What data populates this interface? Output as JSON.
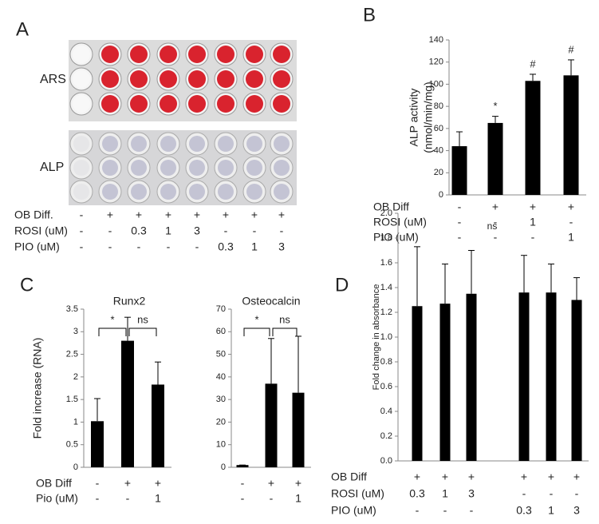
{
  "panel_labels": [
    "A",
    "B",
    "C",
    "D"
  ],
  "panel_a": {
    "row_labels": [
      "ARS",
      "ALP"
    ],
    "conditions": [
      {
        "name": "OB Diff.",
        "values": [
          "-",
          "+",
          "+",
          "+",
          "+",
          "+",
          "+",
          "+"
        ]
      },
      {
        "name": "ROSI (uM)",
        "values": [
          "-",
          "-",
          "0.3",
          "1",
          "3",
          "-",
          "-",
          "-"
        ]
      },
      {
        "name": "PIO (uM)",
        "values": [
          "-",
          "-",
          "-",
          "-",
          "-",
          "0.3",
          "1",
          "3"
        ]
      }
    ]
  },
  "chart_data": [
    {
      "type": "bar",
      "ylabel": [
        "ALP activity",
        "(nmol/min/mg)"
      ],
      "color": "#000000",
      "values": [
        44,
        65,
        103,
        108
      ],
      "errors": [
        13,
        6,
        6,
        14
      ],
      "bar_labels": [
        null,
        "*",
        "#",
        "#"
      ],
      "ylim": [
        0,
        140
      ],
      "yticks": [
        0,
        20,
        40,
        60,
        80,
        100,
        120,
        140
      ],
      "conditions": [
        {
          "name": "OB Diff",
          "values": [
            "-",
            "+",
            "+",
            "+"
          ]
        },
        {
          "name": "ROSI (uM)",
          "values": [
            "-",
            "-",
            "1",
            "-"
          ]
        },
        {
          "name": "PIO   (uM)",
          "values": [
            "-",
            "-",
            "-",
            "1"
          ]
        }
      ]
    },
    {
      "type": "bar",
      "title": "Runx2",
      "ylabel": [
        "Fold increase (RNA)"
      ],
      "color": "#000000",
      "values": [
        1.02,
        2.8,
        1.83
      ],
      "errors": [
        0.5,
        0.52,
        0.5
      ],
      "bracket_labels": [
        "*",
        "ns"
      ],
      "ylim": [
        0,
        3.5
      ],
      "yticks": [
        0,
        0.5,
        1,
        1.5,
        2,
        2.5,
        3,
        3.5
      ],
      "conditions": [
        {
          "name": "OB Diff",
          "values": [
            "-",
            "+",
            "+"
          ]
        },
        {
          "name": "Pio (uM)",
          "values": [
            "-",
            "-",
            "1"
          ]
        }
      ]
    },
    {
      "type": "bar",
      "title": "Osteocalcin",
      "color": "#000000",
      "values": [
        1,
        37,
        33
      ],
      "errors": [
        0,
        20,
        25
      ],
      "bracket_labels": [
        "*",
        "ns"
      ],
      "ylim": [
        0,
        70
      ],
      "yticks": [
        0,
        10,
        20,
        30,
        40,
        50,
        60,
        70
      ],
      "conditions": [
        {
          "values": [
            "-",
            "+",
            "+"
          ]
        },
        {
          "values": [
            "-",
            "-",
            "1"
          ]
        }
      ]
    },
    {
      "type": "bar",
      "ylabel": [
        "Fold change in absorbance"
      ],
      "annotation": "ns",
      "color": "#000000",
      "values": [
        1.25,
        1.27,
        1.35,
        null,
        1.36,
        1.36,
        1.3
      ],
      "errors": [
        0.48,
        0.32,
        0.35,
        null,
        0.3,
        0.23,
        0.18
      ],
      "ylim": [
        0,
        2.0
      ],
      "yticks": [
        {
          "value": 0,
          "label": "0.0"
        },
        {
          "value": 0.2,
          "label": "0.2"
        },
        {
          "value": 0.4,
          "label": "0.4"
        },
        {
          "value": 0.6,
          "label": "0.6"
        },
        {
          "value": 0.8,
          "label": "0.8"
        },
        {
          "value": 1,
          "label": "1.0"
        },
        {
          "value": 1.2,
          "label": "1.2"
        },
        {
          "value": 1.4,
          "label": "1.4"
        },
        {
          "value": 1.6,
          "label": "1.6"
        },
        {
          "value": 1.8,
          "label": "1.8"
        },
        {
          "value": 2,
          "label": "2.0"
        }
      ],
      "conditions": [
        {
          "name": "OB Diff",
          "values": [
            "+",
            "+",
            "+",
            null,
            "+",
            "+",
            "+"
          ]
        },
        {
          "name": "ROSI  (uM)",
          "values": [
            "0.3",
            "1",
            "3",
            null,
            "-",
            "-",
            "-"
          ]
        },
        {
          "name": "PIO     (uM)",
          "values": [
            "-",
            "-",
            "-",
            null,
            "0.3",
            "1",
            "3"
          ]
        }
      ]
    }
  ]
}
